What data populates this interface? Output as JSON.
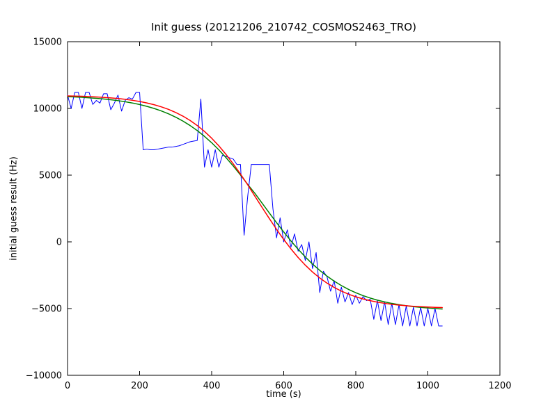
{
  "chart_data": {
    "type": "line",
    "title": "Init guess (20121206_210742_COSMOS2463_TRO)",
    "xlabel": "time (s)",
    "ylabel": "initial guess result (Hz)",
    "xlim": [
      0,
      1200
    ],
    "ylim": [
      -10000,
      15000
    ],
    "xticks": [
      0,
      200,
      400,
      600,
      800,
      1000,
      1200
    ],
    "yticks": [
      -10000,
      -5000,
      0,
      5000,
      10000,
      15000
    ],
    "grid": false,
    "legend": "none",
    "series": [
      {
        "name": "blue-noisy-data",
        "color": "#0000ff",
        "x": [
          0,
          10,
          20,
          30,
          40,
          50,
          60,
          70,
          80,
          90,
          100,
          110,
          120,
          130,
          140,
          150,
          160,
          170,
          180,
          190,
          200,
          210,
          220,
          230,
          240,
          250,
          260,
          270,
          280,
          290,
          300,
          310,
          320,
          330,
          340,
          350,
          360,
          370,
          380,
          390,
          400,
          410,
          420,
          430,
          440,
          450,
          460,
          470,
          480,
          490,
          500,
          510,
          520,
          530,
          540,
          550,
          560,
          570,
          580,
          590,
          600,
          610,
          620,
          630,
          640,
          650,
          660,
          670,
          680,
          690,
          700,
          710,
          720,
          730,
          740,
          750,
          760,
          770,
          780,
          790,
          800,
          810,
          820,
          830,
          840,
          850,
          860,
          870,
          880,
          890,
          900,
          910,
          920,
          930,
          940,
          950,
          960,
          970,
          980,
          990,
          1000,
          1010,
          1020,
          1030,
          1040
        ],
        "y": [
          11000,
          10000,
          11200,
          11200,
          10000,
          11200,
          11200,
          10300,
          10600,
          10400,
          11100,
          11100,
          9900,
          10400,
          11000,
          9800,
          10600,
          10800,
          10700,
          11200,
          11200,
          6900,
          6950,
          6900,
          6900,
          6950,
          7000,
          7050,
          7100,
          7100,
          7150,
          7200,
          7300,
          7400,
          7500,
          7550,
          7600,
          10700,
          5600,
          6900,
          5600,
          6900,
          5600,
          6500,
          6400,
          6300,
          6200,
          5800,
          5800,
          500,
          3400,
          5800,
          5800,
          5800,
          5800,
          5800,
          5800,
          2500,
          300,
          1800,
          0,
          900,
          -400,
          600,
          -700,
          -200,
          -1400,
          0,
          -2000,
          -800,
          -3800,
          -2200,
          -2600,
          -3700,
          -2900,
          -4600,
          -3400,
          -4500,
          -3800,
          -4700,
          -4000,
          -4600,
          -4100,
          -4400,
          -4300,
          -5800,
          -4400,
          -5900,
          -4500,
          -6200,
          -4600,
          -6200,
          -4700,
          -6300,
          -4800,
          -6300,
          -4900,
          -6300,
          -4900,
          -6300,
          -5000,
          -6300,
          -5000,
          -6300,
          -6300
        ]
      },
      {
        "name": "green-smooth-fit",
        "color": "#008000",
        "x": [
          0,
          20,
          40,
          60,
          80,
          100,
          120,
          140,
          160,
          180,
          200,
          220,
          240,
          260,
          280,
          300,
          320,
          340,
          360,
          380,
          400,
          420,
          440,
          460,
          480,
          500,
          520,
          540,
          560,
          580,
          600,
          620,
          640,
          660,
          680,
          700,
          720,
          740,
          760,
          780,
          800,
          820,
          840,
          860,
          880,
          900,
          920,
          940,
          960,
          980,
          1000,
          1020,
          1040
        ],
        "y": [
          10881,
          10858,
          10830,
          10796,
          10756,
          10708,
          10651,
          10583,
          10502,
          10406,
          10292,
          10158,
          10000,
          9815,
          9598,
          9346,
          9056,
          8721,
          8340,
          7910,
          7428,
          6895,
          6311,
          5681,
          5011,
          4309,
          3635,
          2900,
          2166,
          1442,
          741,
          74,
          -553,
          -1132,
          -1662,
          -2140,
          -2567,
          -2945,
          -3276,
          -3564,
          -3813,
          -4027,
          -4211,
          -4367,
          -4500,
          -4612,
          -4707,
          -4787,
          -4855,
          -4911,
          -4958,
          -4998,
          -5031
        ]
      },
      {
        "name": "red-smooth-fit",
        "color": "#ff0000",
        "x": [
          0,
          20,
          40,
          60,
          80,
          100,
          120,
          140,
          160,
          180,
          200,
          220,
          240,
          260,
          280,
          300,
          320,
          340,
          360,
          380,
          400,
          420,
          440,
          460,
          480,
          500,
          520,
          540,
          560,
          580,
          600,
          620,
          640,
          660,
          680,
          700,
          720,
          740,
          760,
          780,
          800,
          820,
          840,
          860,
          880,
          900,
          920,
          940,
          960,
          980,
          1000,
          1020,
          1040
        ],
        "y": [
          10940,
          10926,
          10909,
          10887,
          10861,
          10829,
          10789,
          10741,
          10682,
          10609,
          10520,
          10412,
          10281,
          10122,
          9930,
          9699,
          9425,
          9100,
          8719,
          8276,
          7768,
          7192,
          6548,
          5842,
          5079,
          4279,
          3421,
          2579,
          1748,
          944,
          182,
          -526,
          -1171,
          -1750,
          -2261,
          -2706,
          -3089,
          -3415,
          -3691,
          -3923,
          -4116,
          -4276,
          -4408,
          -4517,
          -4606,
          -4679,
          -4739,
          -4788,
          -4828,
          -4860,
          -4886,
          -4908,
          -4925
        ]
      }
    ]
  }
}
